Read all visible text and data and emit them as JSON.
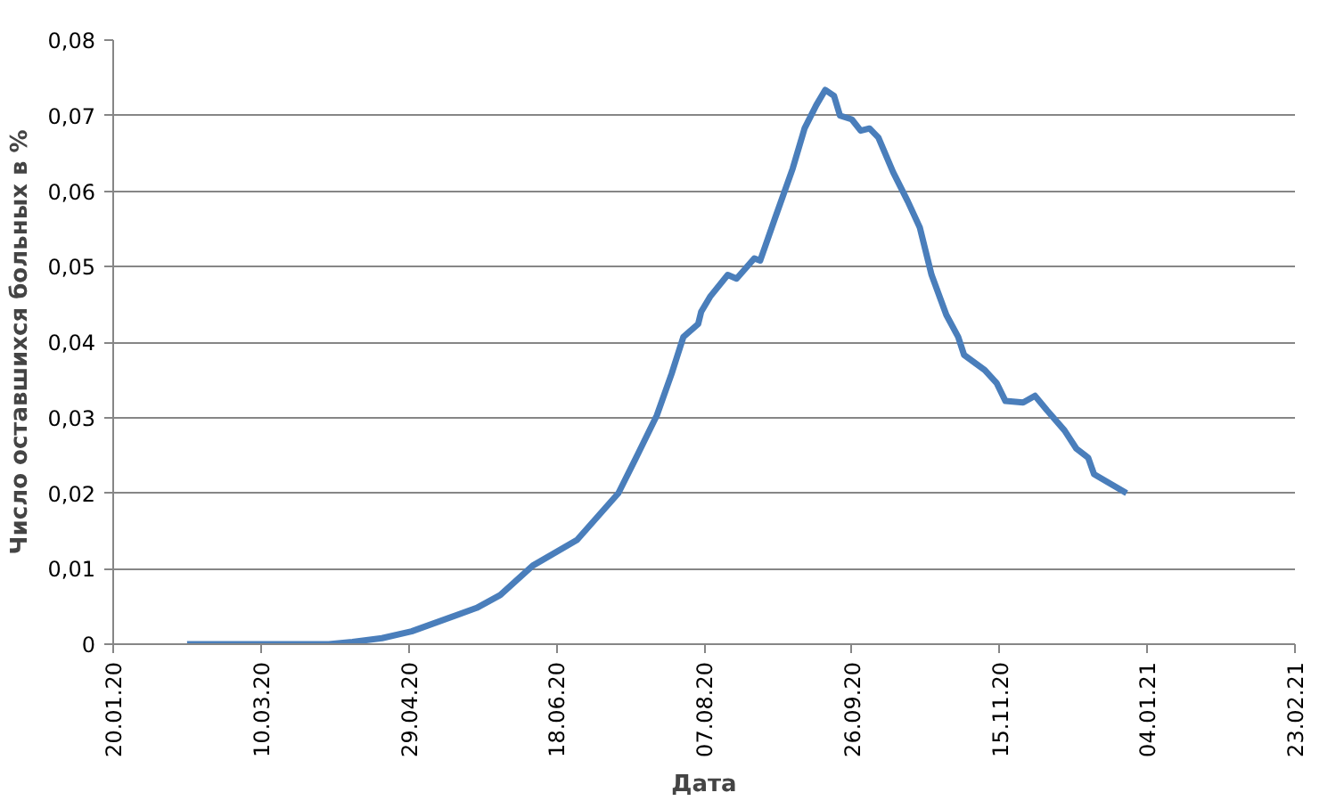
{
  "chart_data": {
    "type": "line",
    "xlabel": "Дата",
    "ylabel": "Число оставшихся больных в %",
    "xlim": [
      "2020-01-20",
      "2021-02-23"
    ],
    "xticks": [
      {
        "value": "2020-01-20",
        "label": "20.01.20"
      },
      {
        "value": "2020-03-10",
        "label": "10.03.20"
      },
      {
        "value": "2020-04-29",
        "label": "29.04.20"
      },
      {
        "value": "2020-06-18",
        "label": "18.06.20"
      },
      {
        "value": "2020-08-07",
        "label": "07.08.20"
      },
      {
        "value": "2020-09-26",
        "label": "26.09.20"
      },
      {
        "value": "2020-11-15",
        "label": "15.11.20"
      },
      {
        "value": "2021-01-04",
        "label": "04.01.21"
      },
      {
        "value": "2021-02-23",
        "label": "23.02.21"
      }
    ],
    "ylim": [
      0,
      0.08
    ],
    "yticks": [
      0,
      {
        "value": 0.01,
        "label": "0,01"
      },
      {
        "value": 0.02,
        "label": "0,02"
      },
      {
        "value": 0.03,
        "label": "0,03"
      },
      {
        "value": 0.04,
        "label": "0,04"
      },
      {
        "value": 0.05,
        "label": "0,05"
      },
      {
        "value": 0.06,
        "label": "0,06"
      },
      {
        "value": 0.07,
        "label": "0,07"
      },
      {
        "value": 0.08,
        "label": "0,08"
      }
    ],
    "grid": "y",
    "marker": "none",
    "line_style": "solid",
    "x": [
      "2020-02-14",
      "2020-03-15",
      "2020-04-02",
      "2020-04-10",
      "2020-04-20",
      "2020-04-30",
      "2020-05-22",
      "2020-05-30",
      "2020-06-10",
      "2020-06-25",
      "2020-07-09",
      "2020-07-15",
      "2020-07-22",
      "2020-07-27",
      "2020-07-31",
      "2020-08-05",
      "2020-08-06",
      "2020-08-09",
      "2020-08-15",
      "2020-08-18",
      "2020-08-24",
      "2020-08-26",
      "2020-08-31",
      "2020-09-06",
      "2020-09-10",
      "2020-09-14",
      "2020-09-17",
      "2020-09-20",
      "2020-09-22",
      "2020-09-26",
      "2020-09-29",
      "2020-10-02",
      "2020-10-05",
      "2020-10-10",
      "2020-10-15",
      "2020-10-19",
      "2020-10-23",
      "2020-10-28",
      "2020-11-01",
      "2020-11-03",
      "2020-11-10",
      "2020-11-14",
      "2020-11-17",
      "2020-11-23",
      "2020-11-27",
      "2020-12-01",
      "2020-12-07",
      "2020-12-11",
      "2020-12-15",
      "2020-12-17",
      "2020-12-21",
      "2020-12-28"
    ],
    "series": [
      {
        "color": "#4a7ebb",
        "values": [
          0,
          0,
          0,
          0.0003,
          0.0008,
          0.0017,
          0.0048,
          0.0065,
          0.0104,
          0.0138,
          0.02,
          0.0247,
          0.0303,
          0.0358,
          0.0407,
          0.0424,
          0.044,
          0.046,
          0.0489,
          0.0484,
          0.0511,
          0.0508,
          0.0564,
          0.063,
          0.0683,
          0.0714,
          0.0734,
          0.0726,
          0.07,
          0.0695,
          0.068,
          0.0683,
          0.0671,
          0.0625,
          0.0586,
          0.0552,
          0.0489,
          0.0436,
          0.0407,
          0.0383,
          0.0363,
          0.0346,
          0.0322,
          0.032,
          0.0329,
          0.031,
          0.0283,
          0.0259,
          0.0247,
          0.0225,
          0.0216,
          0.02
        ]
      }
    ]
  }
}
